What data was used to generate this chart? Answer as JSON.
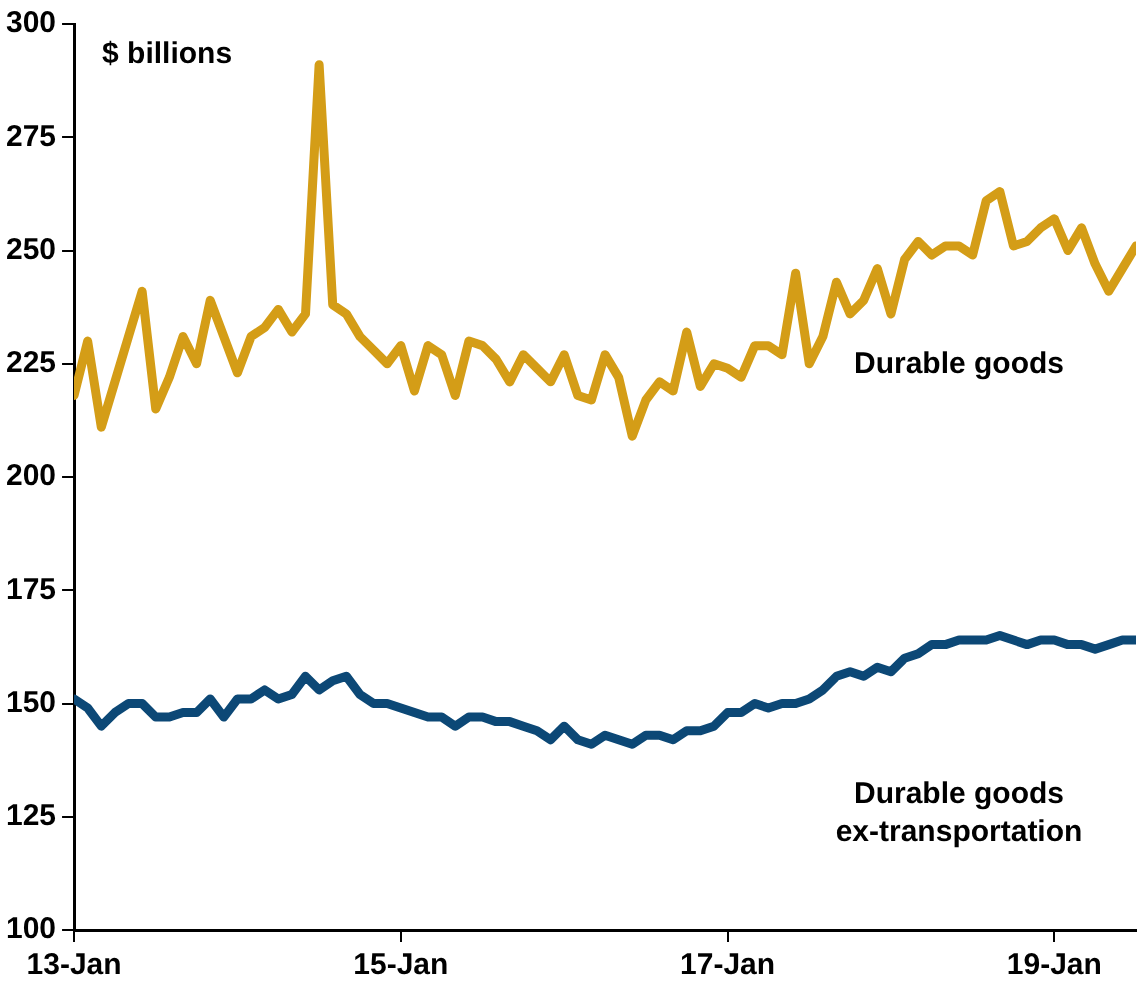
{
  "chart_data": {
    "type": "line",
    "ylabel": "$ billions",
    "x": [
      "2013-01",
      "2013-02",
      "2013-03",
      "2013-04",
      "2013-05",
      "2013-06",
      "2013-07",
      "2013-08",
      "2013-09",
      "2013-10",
      "2013-11",
      "2013-12",
      "2014-01",
      "2014-02",
      "2014-03",
      "2014-04",
      "2014-05",
      "2014-06",
      "2014-07",
      "2014-08",
      "2014-09",
      "2014-10",
      "2014-11",
      "2014-12",
      "2015-01",
      "2015-02",
      "2015-03",
      "2015-04",
      "2015-05",
      "2015-06",
      "2015-07",
      "2015-08",
      "2015-09",
      "2015-10",
      "2015-11",
      "2015-12",
      "2016-01",
      "2016-02",
      "2016-03",
      "2016-04",
      "2016-05",
      "2016-06",
      "2016-07",
      "2016-08",
      "2016-09",
      "2016-10",
      "2016-11",
      "2016-12",
      "2017-01",
      "2017-02",
      "2017-03",
      "2017-04",
      "2017-05",
      "2017-06",
      "2017-07",
      "2017-08",
      "2017-09",
      "2017-10",
      "2017-11",
      "2017-12",
      "2018-01",
      "2018-02",
      "2018-03",
      "2018-04",
      "2018-05",
      "2018-06",
      "2018-07",
      "2018-08",
      "2018-09",
      "2018-10",
      "2018-11",
      "2018-12",
      "2019-01",
      "2019-02",
      "2019-03",
      "2019-04",
      "2019-05",
      "2019-06",
      "2019-07"
    ],
    "series": [
      {
        "name": "Durable goods",
        "color": "#d49d17",
        "values": [
          218,
          230,
          211,
          221,
          231,
          241,
          215,
          222,
          231,
          225,
          239,
          231,
          223,
          231,
          233,
          237,
          232,
          236,
          291,
          238,
          236,
          231,
          228,
          225,
          229,
          219,
          229,
          227,
          218,
          230,
          229,
          226,
          221,
          227,
          224,
          221,
          227,
          218,
          217,
          227,
          222,
          209,
          217,
          221,
          219,
          232,
          220,
          225,
          224,
          222,
          229,
          229,
          227,
          245,
          225,
          231,
          243,
          236,
          239,
          246,
          236,
          248,
          252,
          249,
          251,
          251,
          249,
          261,
          263,
          251,
          252,
          255,
          257,
          250,
          255,
          247,
          241,
          246,
          251
        ]
      },
      {
        "name": "Durable goods ex-transportation",
        "color": "#0c4876",
        "values": [
          151,
          149,
          145,
          148,
          150,
          150,
          147,
          147,
          148,
          148,
          151,
          147,
          151,
          151,
          153,
          151,
          152,
          156,
          153,
          155,
          156,
          152,
          150,
          150,
          149,
          148,
          147,
          147,
          145,
          147,
          147,
          146,
          146,
          145,
          144,
          142,
          145,
          142,
          141,
          143,
          142,
          141,
          143,
          143,
          142,
          144,
          144,
          145,
          148,
          148,
          150,
          149,
          150,
          150,
          151,
          153,
          156,
          157,
          156,
          158,
          157,
          160,
          161,
          163,
          163,
          164,
          164,
          164,
          165,
          164,
          163,
          164,
          164,
          163,
          163,
          162,
          163,
          164,
          164
        ]
      }
    ],
    "xlim": [
      "2013-01",
      "2019-07"
    ],
    "xticks": [
      {
        "value": "2013-01",
        "label": "13-Jan"
      },
      {
        "value": "2015-01",
        "label": "15-Jan"
      },
      {
        "value": "2017-01",
        "label": "17-Jan"
      },
      {
        "value": "2019-01",
        "label": "19-Jan"
      }
    ],
    "ylim": [
      100,
      300
    ],
    "yticks": [
      100,
      125,
      150,
      175,
      200,
      225,
      250,
      275,
      300
    ],
    "grid": false,
    "legend": false,
    "marker": "none",
    "line_style": "solid"
  }
}
